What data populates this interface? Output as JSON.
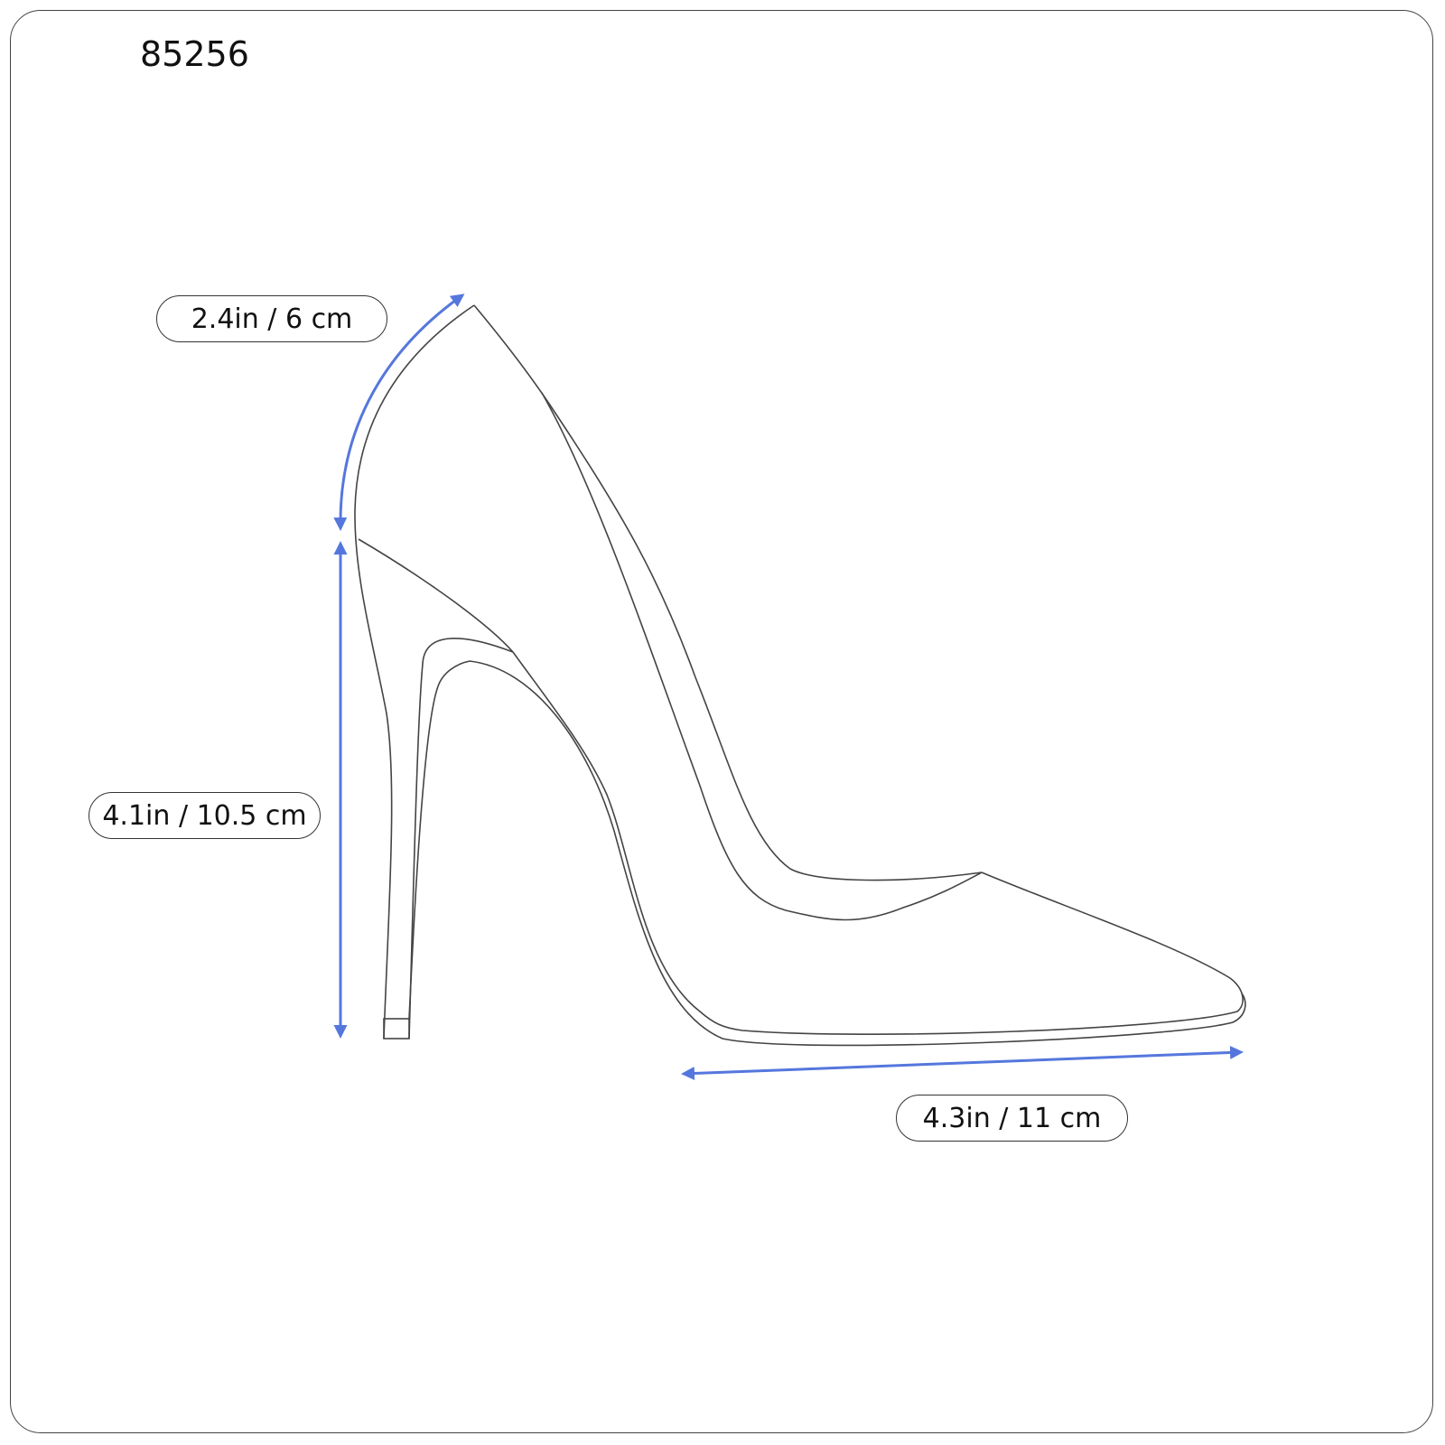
{
  "product_code": "85256",
  "accent_color": "#5577dd",
  "dimensions": {
    "shaft": "2.4in / 6 cm",
    "heel_height": "4.1in / 10.5 cm",
    "length": "4.3in / 11 cm"
  }
}
